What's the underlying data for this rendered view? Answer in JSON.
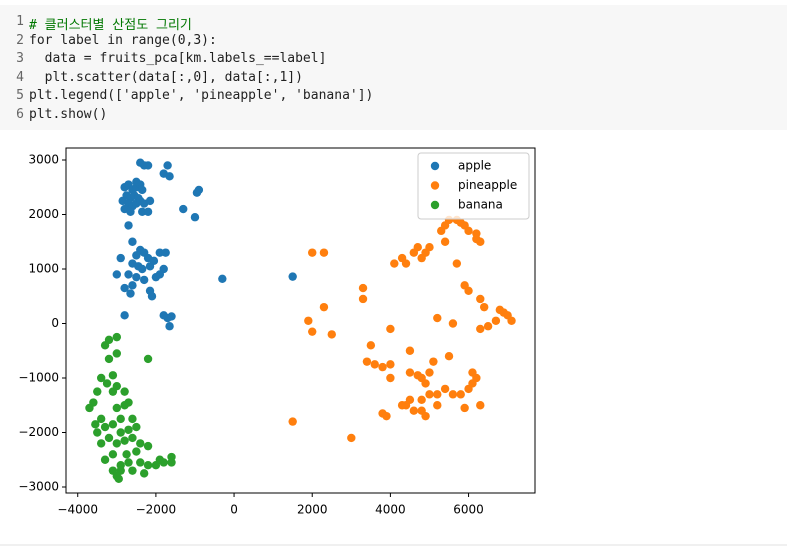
{
  "code": {
    "lines": [
      {
        "number": 1,
        "text": "# 클러스터별 산점도 그리기"
      },
      {
        "number": 2,
        "text": "for label in range(0,3):"
      },
      {
        "number": 3,
        "text": "  data = fruits_pca[km.labels_==label]"
      },
      {
        "number": 4,
        "text": "  plt.scatter(data[:,0], data[:,1])"
      },
      {
        "number": 5,
        "text": "plt.legend(['apple', 'pineapple', 'banana'])"
      },
      {
        "number": 6,
        "text": "plt.show()"
      }
    ]
  },
  "chart_data": {
    "type": "scatter",
    "legend": "upper right",
    "xlim": [
      -4300,
      7700
    ],
    "ylim": [
      -3110,
      3220
    ],
    "xticks": [
      {
        "value": -4000,
        "label": "−4000"
      },
      {
        "value": -2000,
        "label": "−2000"
      },
      0,
      2000,
      4000,
      6000
    ],
    "yticks": [
      {
        "value": -3000,
        "label": "−3000"
      },
      {
        "value": -2000,
        "label": "−2000"
      },
      {
        "value": -1000,
        "label": "−1000"
      },
      0,
      1000,
      2000,
      3000
    ],
    "series": [
      {
        "name": "apple",
        "color": "#1f77b4",
        "x": [
          -2800,
          -2700,
          -2600,
          -2500,
          -2400,
          -2350,
          -2750,
          -2650,
          -2550,
          -2450,
          -2850,
          -2700,
          -2600,
          -2500,
          -2400,
          -2300,
          -2800,
          -2650,
          -2350,
          -2200,
          -2150,
          -2500,
          -2400,
          -2300,
          -2200,
          -1700,
          -1800,
          -1650,
          -950,
          -900,
          -1300,
          -1000,
          -2700,
          -2600,
          -2400,
          -2300,
          -2200,
          -2500,
          -2600,
          -2450,
          -2350,
          -2150,
          -2050,
          -1900,
          -1750,
          -1800,
          -1900,
          -2000,
          -2300,
          -2500,
          -2700,
          -2600,
          -2800,
          -2650,
          -2150,
          -2100,
          -3000,
          -2900,
          -2800,
          -1700,
          -1600,
          -1800,
          -1650,
          -300,
          1500
        ],
        "values": [
          2500,
          2550,
          2450,
          2500,
          2550,
          2450,
          2350,
          2300,
          2350,
          2300,
          2250,
          2200,
          2150,
          2200,
          2250,
          2200,
          2100,
          2050,
          2050,
          2050,
          2250,
          2600,
          2950,
          2900,
          2900,
          2900,
          2750,
          2700,
          2400,
          2450,
          2100,
          1950,
          1800,
          1500,
          1350,
          1300,
          1200,
          1250,
          1100,
          1050,
          1000,
          1050,
          1150,
          1300,
          1300,
          1000,
          900,
          850,
          800,
          850,
          900,
          700,
          650,
          550,
          600,
          500,
          900,
          1200,
          150,
          100,
          130,
          150,
          -50,
          820,
          860
        ]
      },
      {
        "name": "pineapple",
        "color": "#ff7f0e",
        "x": [
          2000,
          2300,
          1900,
          2000,
          2300,
          2500,
          1500,
          3000,
          3300,
          3300,
          3500,
          3400,
          3600,
          3800,
          4000,
          4000,
          3800,
          3900,
          4000,
          4100,
          4300,
          4400,
          4600,
          4700,
          4900,
          4800,
          5000,
          5300,
          5400,
          5500,
          5700,
          5800,
          5900,
          6000,
          5400,
          5700,
          6200,
          6300,
          6200,
          5900,
          6000,
          6300,
          6400,
          6800,
          6900,
          7000,
          7100,
          6700,
          6500,
          6300,
          5600,
          5200,
          5500,
          4500,
          4500,
          4700,
          4800,
          5000,
          5100,
          4900,
          5000,
          4800,
          4500,
          4400,
          4600,
          4300,
          4800,
          4900,
          5200,
          5400,
          5600,
          5800,
          6000,
          6200,
          6100,
          6100,
          6300,
          5900,
          5200
        ],
        "values": [
          1300,
          1300,
          50,
          -150,
          300,
          -200,
          -1800,
          -2100,
          650,
          450,
          -400,
          -700,
          -750,
          -800,
          -750,
          -100,
          -1650,
          -1700,
          -1000,
          1100,
          1200,
          1100,
          1300,
          1400,
          1300,
          1200,
          1400,
          1700,
          1800,
          1900,
          1900,
          1850,
          1800,
          1700,
          1500,
          1100,
          1650,
          1500,
          1550,
          700,
          600,
          450,
          300,
          250,
          200,
          150,
          50,
          50,
          -50,
          -100,
          0,
          100,
          -600,
          -500,
          -900,
          -950,
          -1000,
          -900,
          -700,
          -1100,
          -1300,
          -1400,
          -1400,
          -1500,
          -1600,
          -1500,
          -1600,
          -1700,
          -1300,
          -1200,
          -1300,
          -1300,
          -1200,
          -1000,
          -1100,
          -900,
          -1500,
          -1550,
          -1500
        ]
      },
      {
        "name": "banana",
        "color": "#2ca02c",
        "x": [
          -3000,
          -3200,
          -3300,
          -3000,
          -2200,
          -3200,
          -3400,
          -3100,
          -3000,
          -3250,
          -3500,
          -3600,
          -3700,
          -3100,
          -2800,
          -2700,
          -2800,
          -3000,
          -3400,
          -3550,
          -3500,
          -3300,
          -3100,
          -2900,
          -2600,
          -2500,
          -2700,
          -2900,
          -3200,
          -3400,
          -3000,
          -2800,
          -2600,
          -2400,
          -2200,
          -2500,
          -2750,
          -3100,
          -3300,
          -2900,
          -2700,
          -2400,
          -2200,
          -2000,
          -1800,
          -1600,
          -1600,
          -1900,
          -2300,
          -2600,
          -2900,
          -3000,
          -2950,
          -3100
        ],
        "values": [
          -250,
          -300,
          -400,
          -550,
          -650,
          -650,
          -1000,
          -950,
          -1150,
          -1100,
          -1250,
          -1450,
          -1550,
          -1250,
          -1250,
          -1450,
          -1500,
          -1550,
          -1750,
          -1850,
          -2000,
          -1900,
          -1850,
          -1750,
          -1750,
          -1900,
          -1950,
          -2000,
          -2100,
          -2200,
          -2200,
          -2150,
          -2100,
          -2200,
          -2250,
          -2350,
          -2400,
          -2400,
          -2500,
          -2600,
          -2550,
          -2550,
          -2600,
          -2600,
          -2550,
          -2550,
          -2450,
          -2500,
          -2750,
          -2700,
          -2700,
          -2800,
          -2850,
          -2700
        ]
      }
    ]
  }
}
